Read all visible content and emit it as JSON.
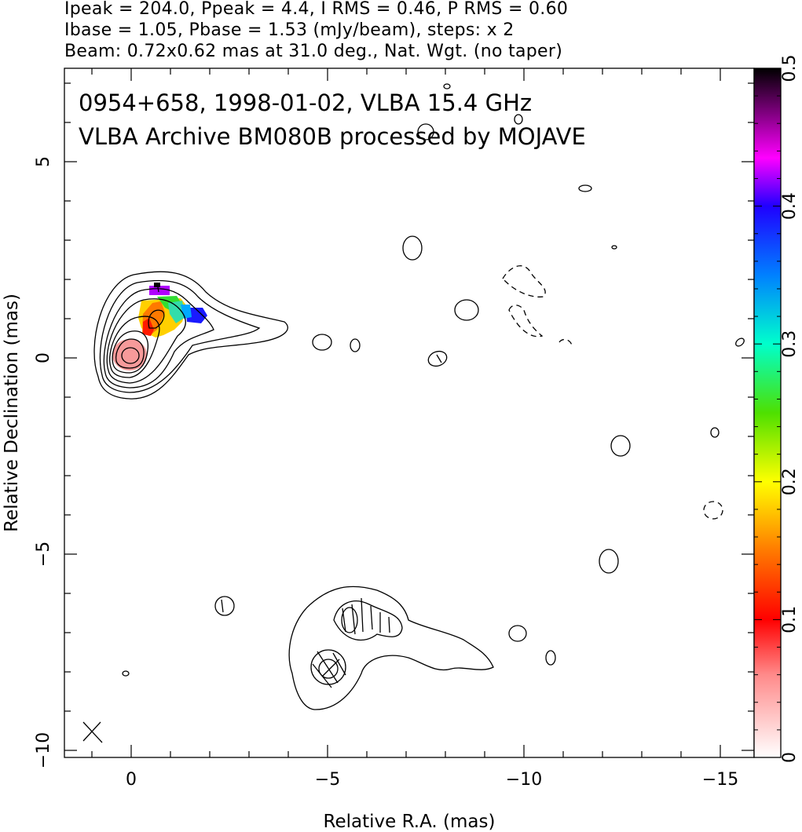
{
  "header": {
    "line1": "Ipeak = 204.0, Ppeak = 4.4, I RMS = 0.46, P RMS = 0.60",
    "line2": "Ibase = 1.05, Pbase = 1.53 (mJy/beam), steps: x 2",
    "line3": "Beam: 0.72x0.62 mas at 31.0 deg., Nat. Wgt. (no taper)"
  },
  "chart_data": {
    "type": "contour",
    "annotation_line1": "0954+658, 1998-01-02, VLBA 15.4 GHz",
    "annotation_line2": "VLBA Archive BM080B processed by MOJAVE",
    "xlabel": "Relative R.A. (mas)",
    "ylabel": "Relative Declination (mas)",
    "xlim": [
      1.7,
      -16
    ],
    "ylim": [
      -10.2,
      7.4
    ],
    "x_ticks": [
      0,
      -5,
      -10,
      -15
    ],
    "x_tick_labels": [
      "0",
      "−5",
      "−10",
      "−15"
    ],
    "y_ticks": [
      5,
      0,
      -5,
      -10
    ],
    "y_tick_labels": [
      "5",
      "0",
      "−5",
      "−10"
    ],
    "colorbar": {
      "min": 0,
      "max": 0.5,
      "ticks": [
        0,
        0.1,
        0.2,
        0.3,
        0.4,
        0.5
      ],
      "tick_labels": [
        "0",
        "0.1",
        "0.2",
        "0.3",
        "0.4",
        "0.5"
      ]
    },
    "beam": {
      "major_mas": 0.72,
      "minor_mas": 0.62,
      "pa_deg": 31.0
    },
    "core": {
      "x": 0,
      "y": 0
    },
    "contour_levels_mjy_per_beam": [
      1.05,
      2.1,
      4.2,
      8.4,
      16.8,
      33.6,
      67.2,
      134.4
    ],
    "secondary_feature": {
      "x": -5.2,
      "y": -7.5
    }
  }
}
